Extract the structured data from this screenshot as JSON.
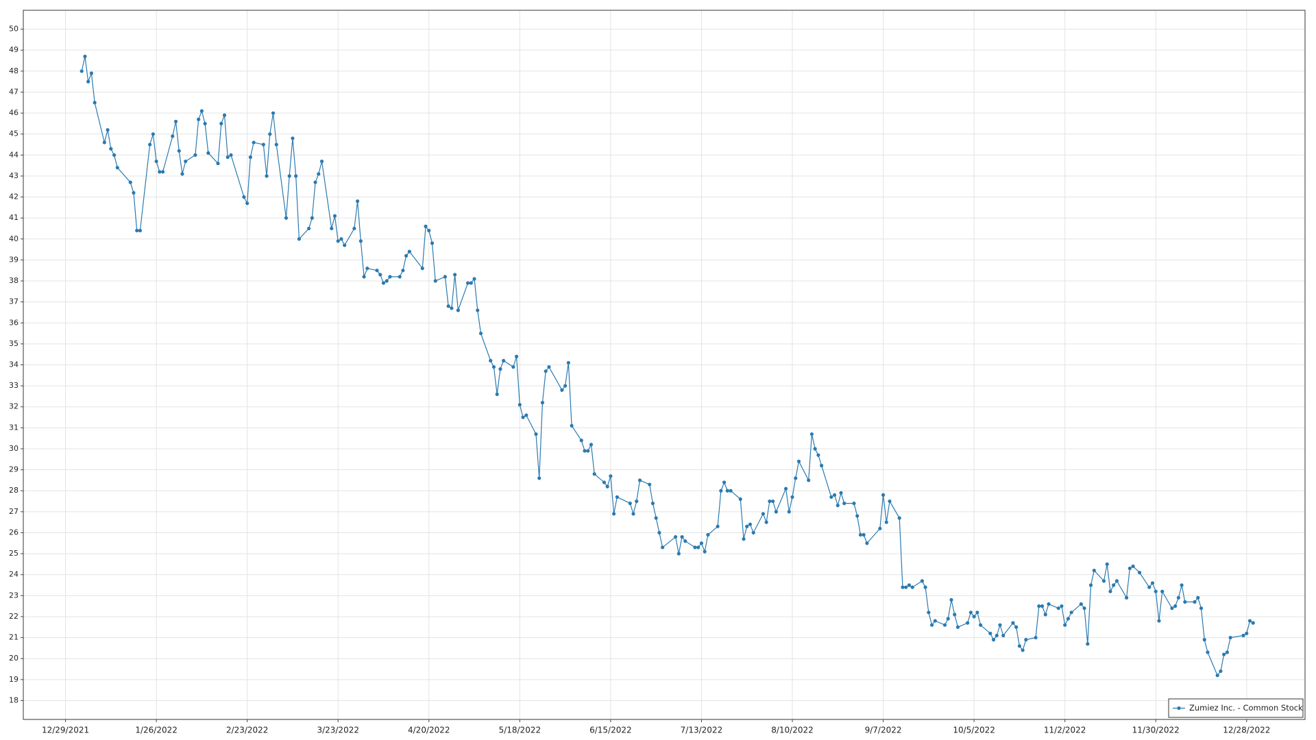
{
  "chart_data": {
    "type": "line",
    "x": [
      "2022-01-03",
      "2022-01-04",
      "2022-01-05",
      "2022-01-06",
      "2022-01-07",
      "2022-01-10",
      "2022-01-11",
      "2022-01-12",
      "2022-01-13",
      "2022-01-14",
      "2022-01-18",
      "2022-01-19",
      "2022-01-20",
      "2022-01-21",
      "2022-01-24",
      "2022-01-25",
      "2022-01-26",
      "2022-01-27",
      "2022-01-28",
      "2022-01-31",
      "2022-02-01",
      "2022-02-02",
      "2022-02-03",
      "2022-02-04",
      "2022-02-07",
      "2022-02-08",
      "2022-02-09",
      "2022-02-10",
      "2022-02-11",
      "2022-02-14",
      "2022-02-15",
      "2022-02-16",
      "2022-02-17",
      "2022-02-18",
      "2022-02-22",
      "2022-02-23",
      "2022-02-24",
      "2022-02-25",
      "2022-02-28",
      "2022-03-01",
      "2022-03-02",
      "2022-03-03",
      "2022-03-04",
      "2022-03-07",
      "2022-03-08",
      "2022-03-09",
      "2022-03-10",
      "2022-03-11",
      "2022-03-14",
      "2022-03-15",
      "2022-03-16",
      "2022-03-17",
      "2022-03-18",
      "2022-03-21",
      "2022-03-22",
      "2022-03-23",
      "2022-03-24",
      "2022-03-25",
      "2022-03-28",
      "2022-03-29",
      "2022-03-30",
      "2022-03-31",
      "2022-04-01",
      "2022-04-04",
      "2022-04-05",
      "2022-04-06",
      "2022-04-07",
      "2022-04-08",
      "2022-04-11",
      "2022-04-12",
      "2022-04-13",
      "2022-04-14",
      "2022-04-18",
      "2022-04-19",
      "2022-04-20",
      "2022-04-21",
      "2022-04-22",
      "2022-04-25",
      "2022-04-26",
      "2022-04-27",
      "2022-04-28",
      "2022-04-29",
      "2022-05-02",
      "2022-05-03",
      "2022-05-04",
      "2022-05-05",
      "2022-05-06",
      "2022-05-09",
      "2022-05-10",
      "2022-05-11",
      "2022-05-12",
      "2022-05-13",
      "2022-05-16",
      "2022-05-17",
      "2022-05-18",
      "2022-05-19",
      "2022-05-20",
      "2022-05-23",
      "2022-05-24",
      "2022-05-25",
      "2022-05-26",
      "2022-05-27",
      "2022-05-31",
      "2022-06-01",
      "2022-06-02",
      "2022-06-03",
      "2022-06-06",
      "2022-06-07",
      "2022-06-08",
      "2022-06-09",
      "2022-06-10",
      "2022-06-13",
      "2022-06-14",
      "2022-06-15",
      "2022-06-16",
      "2022-06-17",
      "2022-06-21",
      "2022-06-22",
      "2022-06-23",
      "2022-06-24",
      "2022-06-27",
      "2022-06-28",
      "2022-06-29",
      "2022-06-30",
      "2022-07-01",
      "2022-07-05",
      "2022-07-06",
      "2022-07-07",
      "2022-07-08",
      "2022-07-11",
      "2022-07-12",
      "2022-07-13",
      "2022-07-14",
      "2022-07-15",
      "2022-07-18",
      "2022-07-19",
      "2022-07-20",
      "2022-07-21",
      "2022-07-22",
      "2022-07-25",
      "2022-07-26",
      "2022-07-27",
      "2022-07-28",
      "2022-07-29",
      "2022-08-01",
      "2022-08-02",
      "2022-08-03",
      "2022-08-04",
      "2022-08-05",
      "2022-08-08",
      "2022-08-09",
      "2022-08-10",
      "2022-08-11",
      "2022-08-12",
      "2022-08-15",
      "2022-08-16",
      "2022-08-17",
      "2022-08-18",
      "2022-08-19",
      "2022-08-22",
      "2022-08-23",
      "2022-08-24",
      "2022-08-25",
      "2022-08-26",
      "2022-08-29",
      "2022-08-30",
      "2022-08-31",
      "2022-09-01",
      "2022-09-02",
      "2022-09-06",
      "2022-09-07",
      "2022-09-08",
      "2022-09-09",
      "2022-09-12",
      "2022-09-13",
      "2022-09-14",
      "2022-09-15",
      "2022-09-16",
      "2022-09-19",
      "2022-09-20",
      "2022-09-21",
      "2022-09-22",
      "2022-09-23",
      "2022-09-26",
      "2022-09-27",
      "2022-09-28",
      "2022-09-29",
      "2022-09-30",
      "2022-10-03",
      "2022-10-04",
      "2022-10-05",
      "2022-10-06",
      "2022-10-07",
      "2022-10-10",
      "2022-10-11",
      "2022-10-12",
      "2022-10-13",
      "2022-10-14",
      "2022-10-17",
      "2022-10-18",
      "2022-10-19",
      "2022-10-20",
      "2022-10-21",
      "2022-10-24",
      "2022-10-25",
      "2022-10-26",
      "2022-10-27",
      "2022-10-28",
      "2022-10-31",
      "2022-11-01",
      "2022-11-02",
      "2022-11-03",
      "2022-11-04",
      "2022-11-07",
      "2022-11-08",
      "2022-11-09",
      "2022-11-10",
      "2022-11-11",
      "2022-11-14",
      "2022-11-15",
      "2022-11-16",
      "2022-11-17",
      "2022-11-18",
      "2022-11-21",
      "2022-11-22",
      "2022-11-23",
      "2022-11-25",
      "2022-11-28",
      "2022-11-29",
      "2022-11-30",
      "2022-12-01",
      "2022-12-02",
      "2022-12-05",
      "2022-12-06",
      "2022-12-07",
      "2022-12-08",
      "2022-12-09",
      "2022-12-12",
      "2022-12-13",
      "2022-12-14",
      "2022-12-15",
      "2022-12-16",
      "2022-12-19",
      "2022-12-20",
      "2022-12-21",
      "2022-12-22",
      "2022-12-23",
      "2022-12-27",
      "2022-12-28",
      "2022-12-29",
      "2022-12-30"
    ],
    "series": [
      {
        "name": "Zumiez Inc. - Common Stock",
        "color": "#2a7ab0",
        "values": [
          48.0,
          48.7,
          47.5,
          47.9,
          46.5,
          44.6,
          45.2,
          44.3,
          44.0,
          43.4,
          42.7,
          42.2,
          40.4,
          40.4,
          44.5,
          45.0,
          43.7,
          43.2,
          43.2,
          44.9,
          45.6,
          44.2,
          43.1,
          43.7,
          44.0,
          45.7,
          46.1,
          45.5,
          44.1,
          43.6,
          45.5,
          45.9,
          43.9,
          44.0,
          42.0,
          41.7,
          43.9,
          44.6,
          44.5,
          43.0,
          45.0,
          46.0,
          44.5,
          41.0,
          43.0,
          44.8,
          43.0,
          40.0,
          40.5,
          41.0,
          42.7,
          43.1,
          43.7,
          40.5,
          41.1,
          39.9,
          40.0,
          39.7,
          40.5,
          41.8,
          39.9,
          38.2,
          38.6,
          38.5,
          38.3,
          37.9,
          38.0,
          38.2,
          38.2,
          38.5,
          39.2,
          39.4,
          38.6,
          40.6,
          40.4,
          39.8,
          38.0,
          38.2,
          36.8,
          36.7,
          38.3,
          36.6,
          37.9,
          37.9,
          38.1,
          36.6,
          35.5,
          34.2,
          33.9,
          32.6,
          33.8,
          34.2,
          33.9,
          34.4,
          32.1,
          31.5,
          31.6,
          30.7,
          28.6,
          32.2,
          33.7,
          33.9,
          32.8,
          33.0,
          34.1,
          31.1,
          30.4,
          29.9,
          29.9,
          30.2,
          28.8,
          28.4,
          28.2,
          28.7,
          26.9,
          27.7,
          27.4,
          26.9,
          27.5,
          28.5,
          28.3,
          27.4,
          26.7,
          26.0,
          25.3,
          25.8,
          25.0,
          25.8,
          25.6,
          25.3,
          25.3,
          25.5,
          25.1,
          25.9,
          26.3,
          28.0,
          28.4,
          28.0,
          28.0,
          27.6,
          25.7,
          26.3,
          26.4,
          26.0,
          26.9,
          26.5,
          27.5,
          27.5,
          27.0,
          28.1,
          27.0,
          27.7,
          28.6,
          29.4,
          28.5,
          30.7,
          30.0,
          29.7,
          29.2,
          27.7,
          27.8,
          27.3,
          27.9,
          27.4,
          27.4,
          26.8,
          25.9,
          25.9,
          25.5,
          26.2,
          27.8,
          26.5,
          27.5,
          26.7,
          23.4,
          23.4,
          23.5,
          23.4,
          23.7,
          23.4,
          22.2,
          21.6,
          21.8,
          21.6,
          21.9,
          22.8,
          22.1,
          21.5,
          21.7,
          22.2,
          22.0,
          22.2,
          21.6,
          21.2,
          20.9,
          21.1,
          21.6,
          21.1,
          21.7,
          21.5,
          20.6,
          20.4,
          20.9,
          21.0,
          22.5,
          22.5,
          22.1,
          22.6,
          22.4,
          22.5,
          21.6,
          21.9,
          22.2,
          22.6,
          22.4,
          20.7,
          23.5,
          24.2,
          23.7,
          24.5,
          23.2,
          23.5,
          23.7,
          22.9,
          24.3,
          24.4,
          24.1,
          23.4,
          23.6,
          23.2,
          21.8,
          23.2,
          22.4,
          22.5,
          22.9,
          23.5,
          22.7,
          22.7,
          22.9,
          22.4,
          20.9,
          20.3,
          19.2,
          19.4,
          20.2,
          20.3,
          21.0,
          21.1,
          21.2,
          21.8,
          21.7
        ]
      }
    ],
    "xlim": [
      "2021-12-16",
      "2023-01-15"
    ],
    "xticks": [
      {
        "value": "2021-12-29",
        "label": "12/29/2021"
      },
      {
        "value": "2022-01-26",
        "label": "1/26/2022"
      },
      {
        "value": "2022-02-23",
        "label": "2/23/2022"
      },
      {
        "value": "2022-03-23",
        "label": "3/23/2022"
      },
      {
        "value": "2022-04-20",
        "label": "4/20/2022"
      },
      {
        "value": "2022-05-18",
        "label": "5/18/2022"
      },
      {
        "value": "2022-06-15",
        "label": "6/15/2022"
      },
      {
        "value": "2022-07-13",
        "label": "7/13/2022"
      },
      {
        "value": "2022-08-10",
        "label": "8/10/2022"
      },
      {
        "value": "2022-09-07",
        "label": "9/7/2022"
      },
      {
        "value": "2022-10-05",
        "label": "10/5/2022"
      },
      {
        "value": "2022-11-02",
        "label": "11/2/2022"
      },
      {
        "value": "2022-11-30",
        "label": "11/30/2022"
      },
      {
        "value": "2022-12-28",
        "label": "12/28/2022"
      }
    ],
    "ylim": [
      17.1,
      50.9
    ],
    "yticks": [
      18,
      19,
      20,
      21,
      22,
      23,
      24,
      25,
      26,
      27,
      28,
      29,
      30,
      31,
      32,
      33,
      34,
      35,
      36,
      37,
      38,
      39,
      40,
      41,
      42,
      43,
      44,
      45,
      46,
      47,
      48,
      49,
      50
    ],
    "grid": true,
    "legend": "bottom-right"
  }
}
